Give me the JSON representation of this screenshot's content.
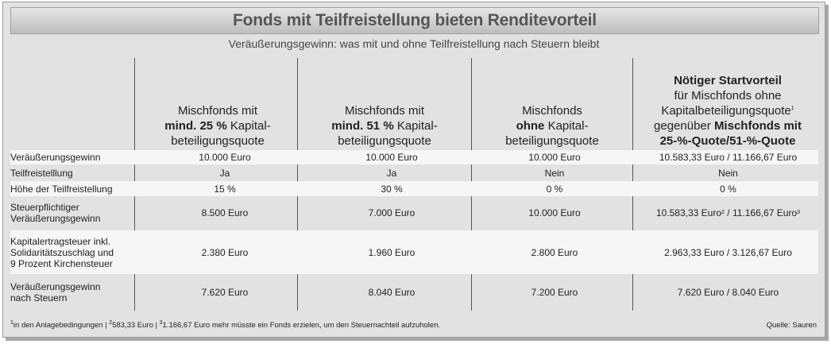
{
  "title": "Fonds mit Teilfreistellung bieten Renditevorteil",
  "subtitle": "Veräußerungsgewinn: was mit und ohne Teilfreistellung nach Steuern bleibt",
  "headers": {
    "col1": {
      "pre": "Mischfonds mit",
      "bold": "mind. 25 %",
      "post_a": " Kapital-",
      "post_b": "beteiligungsquote"
    },
    "col2": {
      "pre": "Mischfonds mit",
      "bold": "mind. 51 %",
      "post_a": " Kapital-",
      "post_b": "beteiligungsquote"
    },
    "col3": {
      "pre": "Mischfonds",
      "bold": "ohne",
      "post_a": " Kapital-",
      "post_b": "beteiligungsquote"
    },
    "col4": {
      "bold1": "Nötiger Startvorteil",
      "line2": "für Mischfonds ohne",
      "line3": "Kapitalbeteiligungsquote",
      "line3_sup": "1",
      "line4_pre": "gegenüber ",
      "line4_bold": "Mischfonds mit",
      "line5_bold": "25-%-Quote/51-%-Quote"
    }
  },
  "rows": [
    {
      "label1": "Veräußerungsgewinn",
      "label2": "",
      "label3": "",
      "v1": "10.000 Euro",
      "v2": "10.000 Euro",
      "v3": "10.000 Euro",
      "v4": "10.583,33 Euro / 11.166,67 Euro"
    },
    {
      "label1": "Teilfreistelllung",
      "label2": "",
      "label3": "",
      "v1": "Ja",
      "v2": "Ja",
      "v3": "Nein",
      "v4": "Nein"
    },
    {
      "label1": "Höhe der Teilfreistellung",
      "label2": "",
      "label3": "",
      "v1": "15 %",
      "v2": "30 %",
      "v3": "0 %",
      "v4": "0 %"
    },
    {
      "label1": "Steuerpflichtiger",
      "label2": "Veräußerungsgewinn",
      "label3": "",
      "v1": "8.500 Euro",
      "v2": "7.000 Euro",
      "v3": "10.000 Euro",
      "v4a": "10.583,33 Euro",
      "v4a_sup": "2",
      "v4b": "/ 11.166,67 Euro",
      "v4b_sup": "3"
    },
    {
      "label1": "Kapitalertragsteuer inkl.",
      "label2": "Solidaritätszuschlag und",
      "label3": "9 Prozent Kirchensteuer",
      "v1": "2.380 Euro",
      "v2": "1.960 Euro",
      "v3": "2.800 Euro",
      "v4": "2.963,33 Euro / 3.126,67 Euro"
    },
    {
      "label1": "Veräußerungsgewinn",
      "label2": "nach Steuern",
      "label3": "",
      "v1": "7.620 Euro",
      "v2": "8.040 Euro",
      "v3": "7.200 Euro",
      "v4": "7.620 Euro / 8.040 Euro"
    }
  ],
  "footnote": {
    "s1": "1",
    "t1": "in den Anlagebedingungen | ",
    "s2": "2",
    "t2": "583,33 Euro | ",
    "s3": "3",
    "t3": "1.166,67 Euro mehr müsste ein Fonds erzielen, um den Steuernachteil aufzuholen."
  },
  "source": "Quelle: Sauren"
}
